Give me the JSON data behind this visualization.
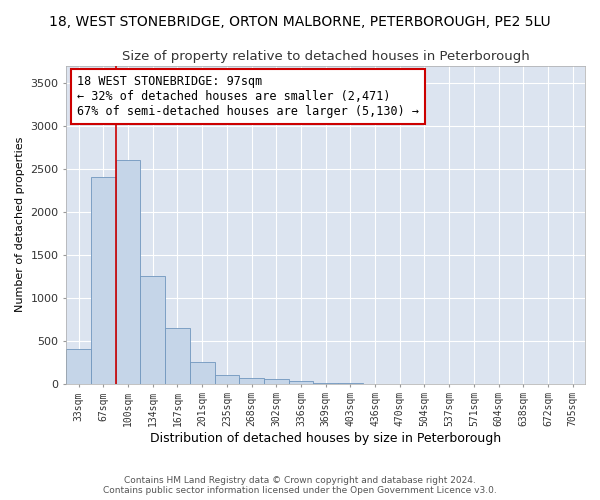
{
  "title": "18, WEST STONEBRIDGE, ORTON MALBORNE, PETERBOROUGH, PE2 5LU",
  "subtitle": "Size of property relative to detached houses in Peterborough",
  "xlabel": "Distribution of detached houses by size in Peterborough",
  "ylabel": "Number of detached properties",
  "footer1": "Contains HM Land Registry data © Crown copyright and database right 2024.",
  "footer2": "Contains public sector information licensed under the Open Government Licence v3.0.",
  "categories": [
    "33sqm",
    "67sqm",
    "100sqm",
    "134sqm",
    "167sqm",
    "201sqm",
    "235sqm",
    "268sqm",
    "302sqm",
    "336sqm",
    "369sqm",
    "403sqm",
    "436sqm",
    "470sqm",
    "504sqm",
    "537sqm",
    "571sqm",
    "604sqm",
    "638sqm",
    "672sqm",
    "705sqm"
  ],
  "values": [
    400,
    2400,
    2600,
    1250,
    650,
    250,
    100,
    60,
    50,
    30,
    10,
    5,
    0,
    0,
    0,
    0,
    0,
    0,
    0,
    0,
    0
  ],
  "bar_color": "#c5d5e8",
  "bar_edge_color": "#7096be",
  "vline_x": 1.5,
  "vline_color": "#cc0000",
  "annotation_text": "18 WEST STONEBRIDGE: 97sqm\n← 32% of detached houses are smaller (2,471)\n67% of semi-detached houses are larger (5,130) →",
  "annotation_box_color": "#ffffff",
  "annotation_box_edge_color": "#cc0000",
  "ylim": [
    0,
    3700
  ],
  "yticks": [
    0,
    500,
    1000,
    1500,
    2000,
    2500,
    3000,
    3500
  ],
  "plot_bg_color": "#dce4f0",
  "grid_color": "#ffffff",
  "title_fontsize": 10,
  "subtitle_fontsize": 9.5,
  "annotation_fontsize": 8.5
}
